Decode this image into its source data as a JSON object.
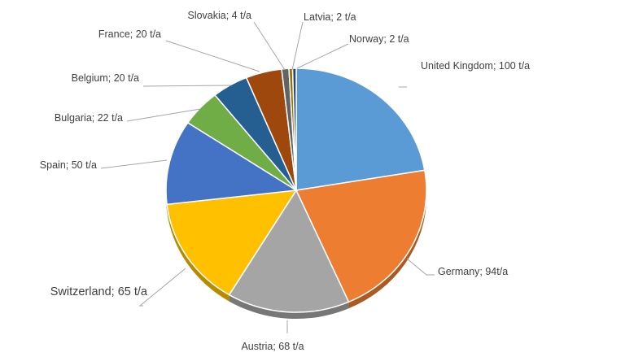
{
  "chart_data": {
    "type": "pie",
    "title": "",
    "legend": "none",
    "slices": [
      {
        "name": "United Kingdom",
        "value": 100,
        "label": "United Kingdom; 100 t/a",
        "color": "#5b9bd5"
      },
      {
        "name": "Germany",
        "value": 94,
        "label": "Germany; 94t/a",
        "color": "#ed7d31"
      },
      {
        "name": "Austria",
        "value": 68,
        "label": "Austria; 68 t/a",
        "color": "#a5a5a5"
      },
      {
        "name": "Switzerland",
        "value": 65,
        "label": "Switzerland; 65 t/a",
        "color": "#ffc000"
      },
      {
        "name": "Spain",
        "value": 50,
        "label": "Spain; 50 t/a",
        "color": "#4472c4"
      },
      {
        "name": "Bulgaria",
        "value": 22,
        "label": "Bulgaria; 22 t/a",
        "color": "#70ad47"
      },
      {
        "name": "Belgium",
        "value": 20,
        "label": "Belgium; 20 t/a",
        "color": "#255e91"
      },
      {
        "name": "France",
        "value": 20,
        "label": "France; 20 t/a",
        "color": "#9e480e"
      },
      {
        "name": "Slovakia",
        "value": 4,
        "label": "Slovakia; 4 t/a",
        "color": "#636363"
      },
      {
        "name": "Latvia",
        "value": 2,
        "label": "Latvia; 2 t/a",
        "color": "#997300"
      },
      {
        "name": "Norway",
        "value": 2,
        "label": "Norway; 2 t/a",
        "color": "#264478"
      }
    ]
  }
}
